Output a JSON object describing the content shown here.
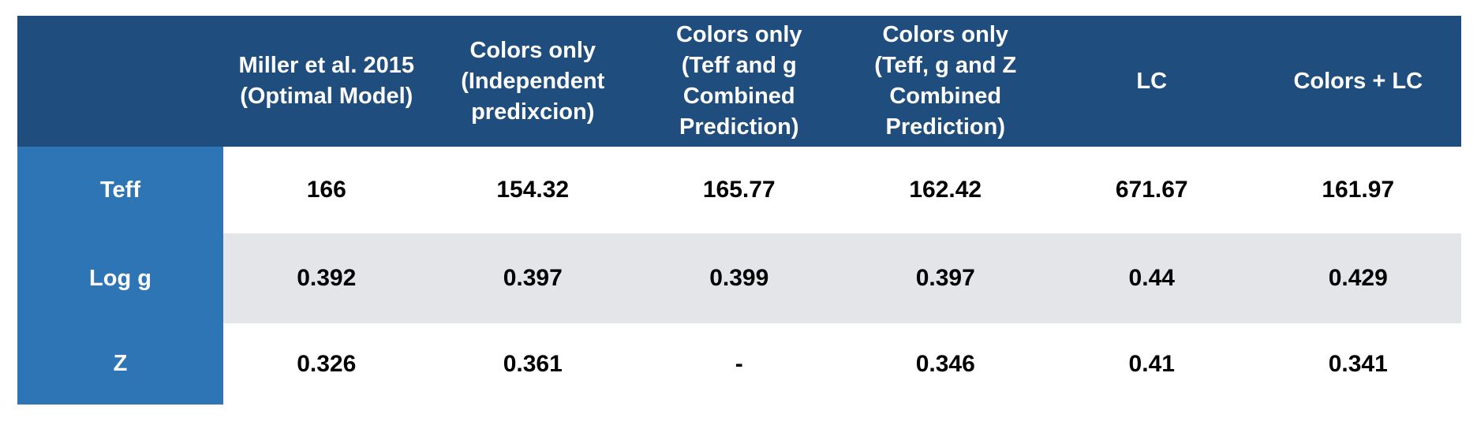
{
  "chart_data": {
    "type": "table",
    "corner_label": "",
    "columns": [
      [
        "Miller et al. 2015",
        "(Optimal Model)"
      ],
      [
        "Colors only",
        "(Independent",
        "predixcion)"
      ],
      [
        "Colors only",
        "(Teff and g",
        "Combined",
        "Prediction)"
      ],
      [
        "Colors only",
        "(Teff, g and Z",
        "Combined",
        "Prediction)"
      ],
      [
        "LC"
      ],
      [
        "Colors + LC"
      ]
    ],
    "rows": [
      {
        "label": "Teff",
        "values": [
          "166",
          "154.32",
          "165.77",
          "162.42",
          "671.67",
          "161.97"
        ]
      },
      {
        "label": "Log g",
        "values": [
          "0.392",
          "0.397",
          "0.399",
          "0.397",
          "0.44",
          "0.429"
        ]
      },
      {
        "label": "Z",
        "values": [
          "0.326",
          "0.361",
          "-",
          "0.346",
          "0.41",
          "0.341"
        ]
      }
    ],
    "colors": {
      "header_bg": "#1f4d7e",
      "row_label_bg": "#2e75b6",
      "striped_row_bg": "#e4e5e8",
      "header_text": "#ffffff",
      "cell_text": "#000000"
    }
  }
}
